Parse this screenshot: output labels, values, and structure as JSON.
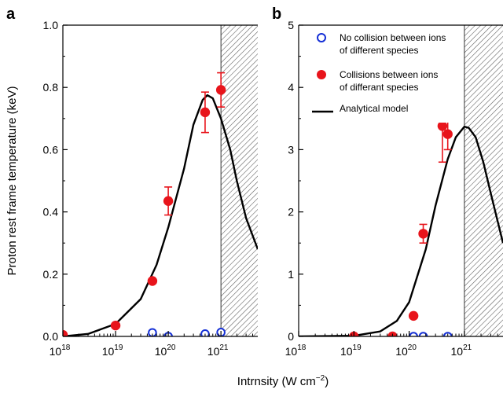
{
  "figure": {
    "xlabel": "Intrnsity (W cm",
    "xlabel_sup": "−2",
    "xlabel_tail": ")"
  },
  "colors": {
    "series_red": "#e8141b",
    "series_blue": "#1530d6",
    "model": "#000000",
    "hatch": "#555555"
  },
  "chart_data": [
    {
      "panel": "a",
      "type": "scatter",
      "ylabel": "Proton rest frame temperature (keV)",
      "x_scale": "log",
      "xlim": [
        1e+18,
        5e+21
      ],
      "ylim": [
        0,
        1.0
      ],
      "x_ticks": [
        {
          "v": 1e+18,
          "b": "10",
          "e": "18"
        },
        {
          "v": 1e+19,
          "b": "10",
          "e": "19"
        },
        {
          "v": 1e+20,
          "b": "10",
          "e": "20"
        },
        {
          "v": 1e+21,
          "b": "10",
          "e": "21"
        }
      ],
      "y_ticks": [
        {
          "v": 0,
          "t": "0.0"
        },
        {
          "v": 0.2,
          "t": "0.2"
        },
        {
          "v": 0.4,
          "t": "0.4"
        },
        {
          "v": 0.6,
          "t": "0.6"
        },
        {
          "v": 0.8,
          "t": "0.8"
        },
        {
          "v": 1.0,
          "t": "1.0"
        }
      ],
      "hatched_region_x": [
        1e+21,
        5e+21
      ],
      "series": [
        {
          "marker": "filled-circle",
          "color": "#e8141b",
          "points": [
            {
              "x": 1e+18,
              "y": 0.005
            },
            {
              "x": 1e+19,
              "y": 0.035
            },
            {
              "x": 5e+19,
              "y": 0.178
            },
            {
              "x": 1e+20,
              "y": 0.435,
              "err": 0.045
            },
            {
              "x": 5e+20,
              "y": 0.72,
              "err": 0.065
            },
            {
              "x": 1e+21,
              "y": 0.792,
              "err": 0.055
            }
          ]
        },
        {
          "marker": "open-circle",
          "color": "#1530d6",
          "points": [
            {
              "x": 5e+19,
              "y": 0.012
            },
            {
              "x": 1e+20,
              "y": 0.0
            },
            {
              "x": 5e+20,
              "y": 0.008
            },
            {
              "x": 1e+21,
              "y": 0.013
            }
          ]
        },
        {
          "marker": "line",
          "color": "#000000",
          "points": [
            {
              "x": 1e+18,
              "y": 0.0
            },
            {
              "x": 3e+18,
              "y": 0.008
            },
            {
              "x": 1e+19,
              "y": 0.04
            },
            {
              "x": 3e+19,
              "y": 0.12
            },
            {
              "x": 6e+19,
              "y": 0.23
            },
            {
              "x": 1e+20,
              "y": 0.35
            },
            {
              "x": 2e+20,
              "y": 0.54
            },
            {
              "x": 3e+20,
              "y": 0.68
            },
            {
              "x": 4.5e+20,
              "y": 0.76
            },
            {
              "x": 5.5e+20,
              "y": 0.775
            },
            {
              "x": 7e+20,
              "y": 0.765
            },
            {
              "x": 1e+21,
              "y": 0.7
            },
            {
              "x": 1.5e+21,
              "y": 0.6
            },
            {
              "x": 2e+21,
              "y": 0.5
            },
            {
              "x": 3e+21,
              "y": 0.38
            },
            {
              "x": 5e+21,
              "y": 0.28
            }
          ]
        }
      ]
    },
    {
      "panel": "b",
      "type": "scatter",
      "ylabel": "",
      "x_scale": "log",
      "xlim": [
        1e+18,
        5e+21
      ],
      "ylim": [
        0,
        5
      ],
      "x_ticks": [
        {
          "v": 1e+18,
          "b": "10",
          "e": "18"
        },
        {
          "v": 1e+19,
          "b": "10",
          "e": "19"
        },
        {
          "v": 1e+20,
          "b": "10",
          "e": "20"
        },
        {
          "v": 1e+21,
          "b": "10",
          "e": "21"
        }
      ],
      "y_ticks": [
        {
          "v": 0,
          "t": "0"
        },
        {
          "v": 1,
          "t": "1"
        },
        {
          "v": 2,
          "t": "2"
        },
        {
          "v": 3,
          "t": "3"
        },
        {
          "v": 4,
          "t": "4"
        },
        {
          "v": 5,
          "t": "5"
        }
      ],
      "hatched_region_x": [
        1e+21,
        5e+21
      ],
      "series": [
        {
          "name_lines": [
            "No collision between ions",
            "of different species"
          ],
          "marker": "open-circle",
          "color": "#1530d6",
          "points": [
            {
              "x": 1e+19,
              "y": 0.0
            },
            {
              "x": 5e+19,
              "y": 0.0
            },
            {
              "x": 1.2e+20,
              "y": 0.0
            },
            {
              "x": 1.8e+20,
              "y": 0.0
            },
            {
              "x": 5e+20,
              "y": 0.0
            }
          ]
        },
        {
          "name_lines": [
            "Collisions between ions",
            "of differant species"
          ],
          "marker": "filled-circle",
          "color": "#e8141b",
          "points": [
            {
              "x": 1e+19,
              "y": 0.0
            },
            {
              "x": 5e+19,
              "y": 0.0
            },
            {
              "x": 1.2e+20,
              "y": 0.33
            },
            {
              "x": 1.8e+20,
              "y": 1.65,
              "err": 0.15
            },
            {
              "x": 4e+20,
              "y": 3.38,
              "err": 0.58
            },
            {
              "x": 5e+20,
              "y": 3.25,
              "err": 0.25
            }
          ]
        },
        {
          "name_lines": [
            "Analytical model"
          ],
          "marker": "line",
          "color": "#000000",
          "points": [
            {
              "x": 1e+18,
              "y": 0.0
            },
            {
              "x": 1e+19,
              "y": 0.01
            },
            {
              "x": 3e+19,
              "y": 0.08
            },
            {
              "x": 6e+19,
              "y": 0.25
            },
            {
              "x": 1e+20,
              "y": 0.55
            },
            {
              "x": 2e+20,
              "y": 1.4
            },
            {
              "x": 3e+20,
              "y": 2.1
            },
            {
              "x": 5e+20,
              "y": 2.85
            },
            {
              "x": 7e+20,
              "y": 3.2
            },
            {
              "x": 1e+21,
              "y": 3.37
            },
            {
              "x": 1.2e+21,
              "y": 3.35
            },
            {
              "x": 1.6e+21,
              "y": 3.2
            },
            {
              "x": 2.2e+21,
              "y": 2.8
            },
            {
              "x": 3e+21,
              "y": 2.3
            },
            {
              "x": 4e+21,
              "y": 1.85
            },
            {
              "x": 5e+21,
              "y": 1.5
            }
          ]
        }
      ]
    }
  ]
}
